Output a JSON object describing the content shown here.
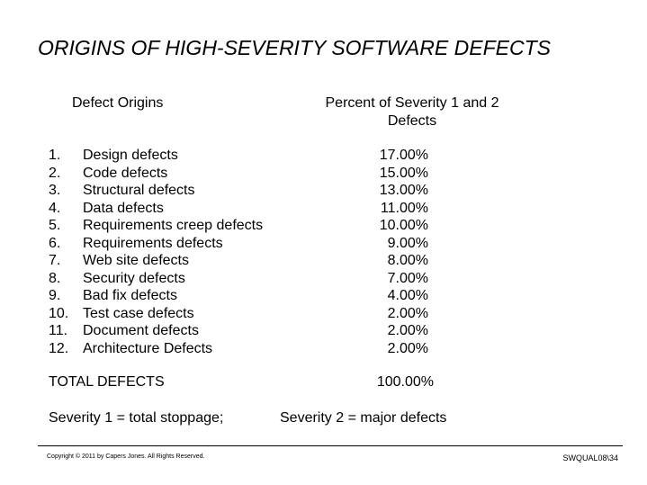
{
  "title": "ORIGINS OF HIGH-SEVERITY SOFTWARE DEFECTS",
  "headers": {
    "left": "Defect Origins",
    "right_line1": "Percent of Severity 1 and 2",
    "right_line2": "Defects"
  },
  "rows": [
    {
      "num": "1.",
      "name": "Design defects",
      "pct": "17.00%"
    },
    {
      "num": "2.",
      "name": "Code defects",
      "pct": "15.00%"
    },
    {
      "num": "3.",
      "name": "Structural defects",
      "pct": "13.00%"
    },
    {
      "num": "4.",
      "name": "Data defects",
      "pct": "11.00%"
    },
    {
      "num": "5.",
      "name": "Requirements creep defects",
      "pct": "10.00%"
    },
    {
      "num": "6.",
      "name": "Requirements defects",
      "pct": "9.00%"
    },
    {
      "num": "7.",
      "name": "Web site defects",
      "pct": "8.00%"
    },
    {
      "num": "8.",
      "name": "Security defects",
      "pct": "7.00%"
    },
    {
      "num": "9.",
      "name": "Bad fix defects",
      "pct": "4.00%"
    },
    {
      "num": "10.",
      "name": "Test case defects",
      "pct": "2.00%"
    },
    {
      "num": "11.",
      "name": "Document defects",
      "pct": "2.00%"
    },
    {
      "num": "12.",
      "name": "Architecture Defects",
      "pct": "2.00%"
    }
  ],
  "total": {
    "label": "TOTAL DEFECTS",
    "value": "100.00%"
  },
  "severity": {
    "sev1": "Severity 1 = total stoppage;",
    "sev2": "Severity 2 = major defects"
  },
  "footer": {
    "copyright": "Copyright © 2011 by Capers Jones. All Rights Reserved.",
    "slide_id": "SWQUAL08\\34"
  }
}
